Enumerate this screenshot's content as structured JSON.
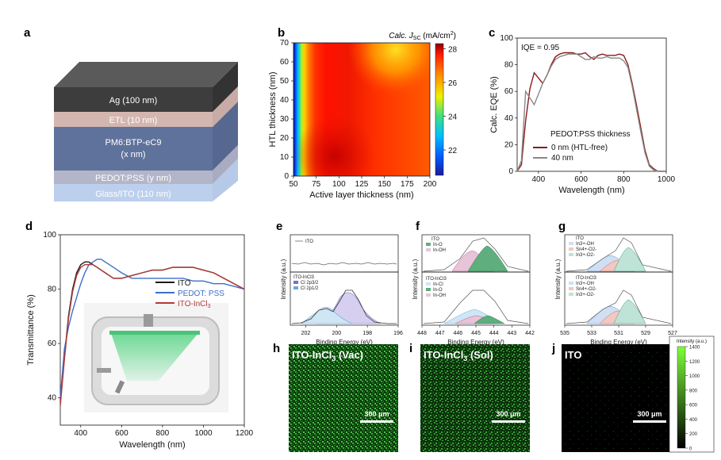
{
  "colors": {
    "ito": "#1a1a1a",
    "pedot": "#3c6fc7",
    "itoincl": "#b23a3a",
    "green": "#3aa83a"
  },
  "panel_a": {
    "label": "a",
    "layers": [
      "Ag (100 nm)",
      "ETL (10 nm)",
      "PM6:BTP-eC9",
      "(x nm)",
      "PEDOT:PSS (y nm)",
      "Glass/ITO (110 nm)"
    ]
  },
  "chart_data": [
    {
      "id": "b",
      "type": "heatmap",
      "label": "b",
      "xlabel": "Active layer thickness (nm)",
      "ylabel": "HTL thickness (nm)",
      "xticks": [
        50,
        75,
        100,
        125,
        150,
        175,
        200
      ],
      "yticks": [
        0,
        10,
        20,
        30,
        40,
        50,
        60,
        70
      ],
      "xlim": [
        50,
        200
      ],
      "ylim": [
        0,
        70
      ],
      "colorbar_title_pre": "Calc. ",
      "colorbar_title_var": "J",
      "colorbar_title_sub": "SC",
      "colorbar_title_post": " (mA/cm",
      "colorbar_title_sup": "2",
      "colorbar_title_end": ")",
      "colorbar_ticks": [
        22,
        24,
        26,
        28
      ],
      "colorbar_range": [
        20.5,
        28.3
      ]
    },
    {
      "id": "c",
      "type": "line",
      "label": "c",
      "xlabel": "Wavelength (nm)",
      "ylabel": "Calc. EQE (%)",
      "xticks": [
        400,
        600,
        800,
        1000
      ],
      "yticks": [
        0,
        20,
        40,
        60,
        80,
        100
      ],
      "xlim": [
        300,
        1000
      ],
      "ylim": [
        0,
        100
      ],
      "annotation": "IQE = 0.95",
      "legend_title": "PEDOT:PSS thickness",
      "series": [
        {
          "name": "0 nm (HTL-free)",
          "color": "#8b1a1a",
          "x": [
            300,
            320,
            340,
            360,
            380,
            400,
            420,
            440,
            460,
            480,
            500,
            520,
            540,
            560,
            580,
            600,
            620,
            640,
            660,
            680,
            700,
            720,
            740,
            760,
            780,
            800,
            820,
            840,
            860,
            880,
            900,
            920,
            940,
            960,
            980,
            1000
          ],
          "y": [
            0,
            5,
            38,
            62,
            74,
            70,
            66,
            72,
            80,
            86,
            88,
            89,
            89,
            89,
            88,
            88,
            89,
            86,
            84,
            87,
            88,
            87,
            87,
            87,
            88,
            87,
            80,
            66,
            50,
            33,
            16,
            5,
            2,
            0,
            0,
            0
          ]
        },
        {
          "name": "40 nm",
          "color": "#888888",
          "x": [
            300,
            320,
            340,
            360,
            380,
            400,
            420,
            440,
            460,
            480,
            500,
            520,
            540,
            560,
            580,
            600,
            620,
            640,
            660,
            680,
            700,
            720,
            740,
            760,
            780,
            800,
            820,
            840,
            860,
            880,
            900,
            920,
            940,
            960,
            980,
            1000
          ],
          "y": [
            0,
            8,
            60,
            55,
            50,
            58,
            66,
            72,
            79,
            84,
            86,
            87,
            88,
            88,
            88,
            86,
            84,
            84,
            86,
            85,
            85,
            86,
            85,
            85,
            85,
            83,
            78,
            64,
            47,
            30,
            14,
            4,
            1,
            0,
            0,
            0
          ]
        }
      ]
    },
    {
      "id": "d",
      "type": "line",
      "label": "d",
      "xlabel": "Wavelength (nm)",
      "ylabel": "Transmittance (%)",
      "xticks": [
        400,
        600,
        800,
        1000,
        1200
      ],
      "yticks": [
        40,
        60,
        80,
        100
      ],
      "xlim": [
        300,
        1200
      ],
      "ylim": [
        30,
        100
      ],
      "series": [
        {
          "name": "ITO",
          "color": "#1a1a1a",
          "x": [
            300,
            320,
            340,
            360,
            380,
            400,
            420,
            440,
            460,
            480,
            500,
            520,
            540,
            560,
            580,
            600,
            650,
            700,
            750,
            800,
            850,
            900,
            950,
            1000,
            1050,
            1100,
            1150,
            1200
          ],
          "y": [
            38,
            55,
            70,
            80,
            86,
            89,
            90,
            90,
            89,
            88,
            87,
            86,
            85,
            84,
            84,
            84,
            85,
            86,
            87,
            87,
            88,
            88,
            88,
            87,
            86,
            84,
            82,
            80
          ]
        },
        {
          "name": "PEDOT: PSS",
          "color": "#3c6fc7",
          "x": [
            300,
            320,
            340,
            360,
            380,
            400,
            420,
            440,
            460,
            480,
            500,
            520,
            540,
            560,
            580,
            600,
            650,
            700,
            750,
            800,
            850,
            900,
            950,
            1000,
            1050,
            1100,
            1150,
            1200
          ],
          "y": [
            40,
            58,
            66,
            72,
            77,
            82,
            86,
            89,
            90,
            91,
            91,
            90,
            89,
            88,
            87,
            86,
            84,
            84,
            84,
            84,
            84,
            84,
            83,
            83,
            82,
            82,
            81,
            80
          ]
        },
        {
          "name": "ITO-InCl3",
          "color": "#b23a3a",
          "x": [
            300,
            320,
            340,
            360,
            380,
            400,
            420,
            440,
            460,
            480,
            500,
            520,
            540,
            560,
            580,
            600,
            650,
            700,
            750,
            800,
            850,
            900,
            950,
            1000,
            1050,
            1100,
            1150,
            1200
          ],
          "y": [
            37,
            54,
            69,
            79,
            85,
            88,
            89,
            89,
            89,
            88,
            87,
            86,
            85,
            84,
            84,
            84,
            85,
            86,
            87,
            87,
            88,
            88,
            88,
            87,
            86,
            84,
            82,
            80
          ]
        }
      ],
      "legend_sub": "3"
    },
    {
      "id": "e",
      "type": "line",
      "label": "e",
      "xlabel": "Binding Energy (eV)",
      "ylabel": "Intensity (a.u.)",
      "xticks": [
        202,
        200,
        198,
        196
      ],
      "xlim": [
        203,
        196
      ],
      "top_legend": [
        "ITO"
      ],
      "bottom_legend": [
        "ITO-InCl3",
        "Cl 2p3/2",
        "Cl 2p1/2"
      ]
    },
    {
      "id": "f",
      "type": "line",
      "label": "f",
      "xlabel": "Binding Energy (eV)",
      "ylabel": "Intensity (a.u.)",
      "xticks": [
        448,
        447,
        446,
        445,
        444,
        443,
        442
      ],
      "xlim": [
        448,
        442
      ],
      "top_legend": [
        "ITO",
        "In-O",
        "In-OH"
      ],
      "bottom_legend": [
        "ITO-InCl3",
        "In-Cl",
        "In-O",
        "In-OH"
      ]
    },
    {
      "id": "g",
      "type": "line",
      "label": "g",
      "xlabel": "Binding Energy (eV)",
      "ylabel": "Intensity (a.u.)",
      "xticks": [
        535,
        533,
        531,
        529,
        527
      ],
      "xlim": [
        535,
        527
      ],
      "top_legend": [
        "ITO",
        "In3+-OH",
        "Sn4+-O2-",
        "In3+-O2-"
      ],
      "bottom_legend": [
        "ITO-InCl3",
        "In3+-OH",
        "Sn4+-O2-",
        "In3+-O2-"
      ]
    }
  ],
  "maps": [
    {
      "label": "h",
      "title": "ITO-InCl3 (Vac)",
      "title_main": "ITO-InCl",
      "title_sub": "3",
      "title_end": " (Vac)",
      "scalebar": "300 μm"
    },
    {
      "label": "i",
      "title": "ITO-InCl3 (Sol)",
      "title_main": "ITO-InCl",
      "title_sub": "3",
      "title_end": " (Sol)",
      "scalebar": "300 μm"
    },
    {
      "label": "j",
      "title": "ITO",
      "title_main": "ITO",
      "title_sub": "",
      "title_end": "",
      "scalebar": "300 μm"
    }
  ],
  "map_colorbar": {
    "title": "Intensity (a.u.)",
    "ticks": [
      0,
      200,
      400,
      600,
      800,
      1000,
      1200,
      1400
    ]
  }
}
